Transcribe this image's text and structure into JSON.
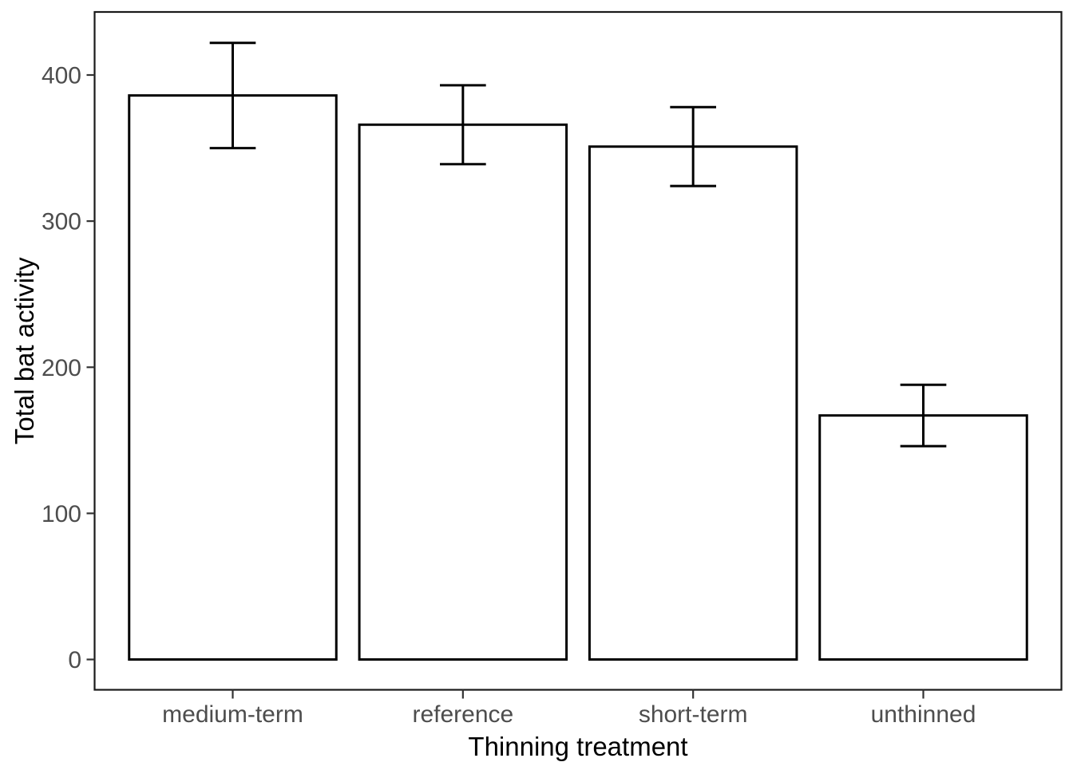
{
  "figure": {
    "background": "#ffffff"
  },
  "chart_data": {
    "type": "bar",
    "title": "",
    "xlabel": "Thinning treatment",
    "ylabel": "Total bat activity",
    "categories": [
      "medium-term",
      "reference",
      "short-term",
      "unthinned"
    ],
    "values": [
      386,
      366,
      351,
      167
    ],
    "error_bars": {
      "upper": [
        422,
        393,
        378,
        188
      ],
      "lower": [
        350,
        339,
        324,
        146
      ]
    },
    "ylim": [
      0,
      400
    ],
    "yticks": [
      0,
      100,
      200,
      300,
      400
    ],
    "ytick_labels": [
      "0",
      "100",
      "200",
      "300",
      "400"
    ],
    "grid": "off",
    "legend": "none",
    "bar_fill": "#ffffff",
    "bar_stroke": "#000000",
    "error_bar_color": "#000000",
    "panel_border_color": "#1a1a1a",
    "axis_tick_color": "#333333",
    "tick_label_color": "#4d4d4d",
    "axis_title_color": "#000000"
  }
}
